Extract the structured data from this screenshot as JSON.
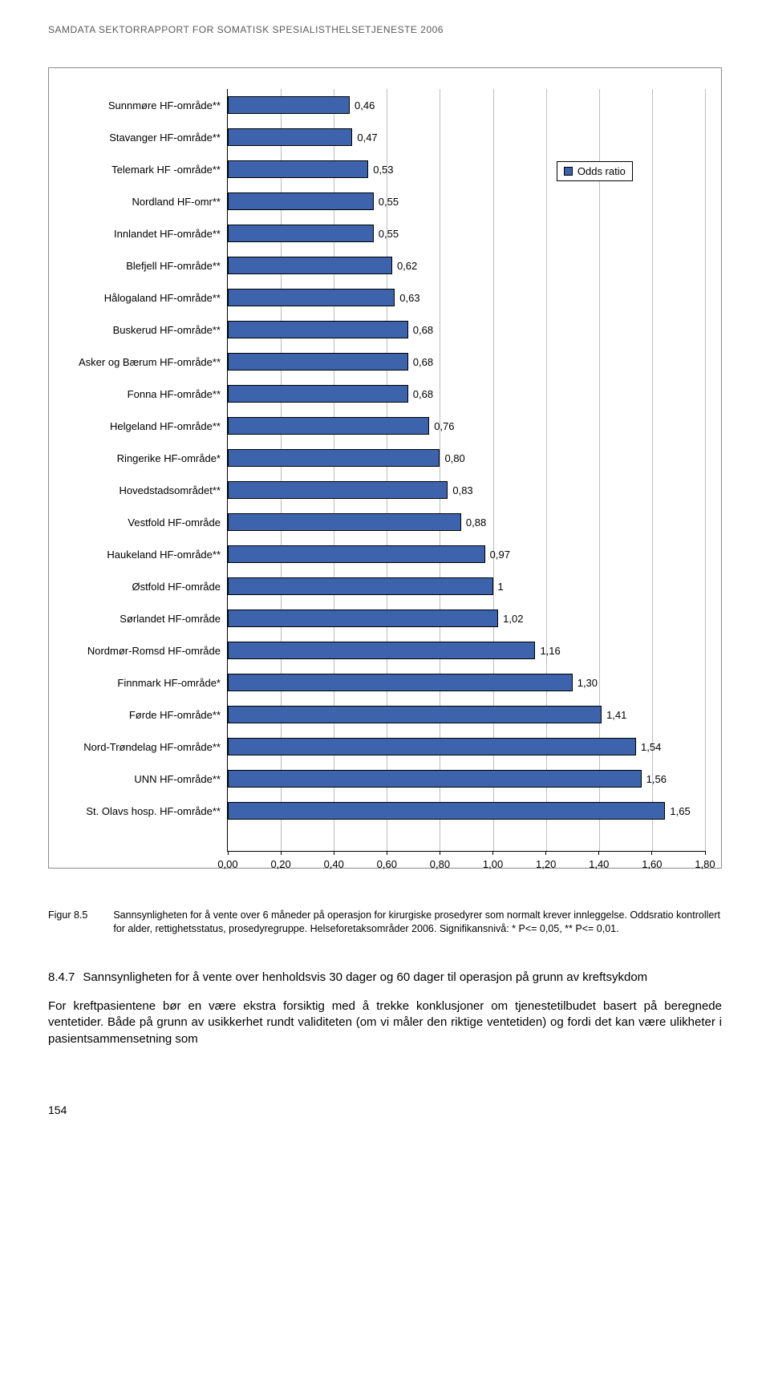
{
  "header": "SAMDATA SEKTORRAPPORT FOR SOMATISK SPESIALISTHELSETJENESTE 2006",
  "chart": {
    "type": "bar",
    "bar_color": "#3c63ac",
    "bar_border": "#000000",
    "grid_color": "#bdbdbd",
    "background_color": "#ffffff",
    "xlim_max": 1.8,
    "x_ticks": [
      "0,00",
      "0,20",
      "0,40",
      "0,60",
      "0,80",
      "1,00",
      "1,20",
      "1,40",
      "1,60",
      "1,80"
    ],
    "x_tick_values": [
      0.0,
      0.2,
      0.4,
      0.6,
      0.8,
      1.0,
      1.2,
      1.4,
      1.6,
      1.8
    ],
    "legend": {
      "swatch_color": "#3c63ac",
      "label": "Odds ratio",
      "left_rel": 1.24,
      "top_row": 2
    },
    "category_fontsize": 13,
    "value_fontsize": 13,
    "tick_fontsize": 13,
    "bars": [
      {
        "label": "Sunnmøre HF-område**",
        "value": 0.46,
        "value_label": "0,46"
      },
      {
        "label": "Stavanger HF-område**",
        "value": 0.47,
        "value_label": "0,47"
      },
      {
        "label": "Telemark HF -område**",
        "value": 0.53,
        "value_label": "0,53"
      },
      {
        "label": "Nordland HF-omr**",
        "value": 0.55,
        "value_label": "0,55"
      },
      {
        "label": "Innlandet HF-område**",
        "value": 0.55,
        "value_label": "0,55"
      },
      {
        "label": "Blefjell HF-område**",
        "value": 0.62,
        "value_label": "0,62"
      },
      {
        "label": "Hålogaland HF-område**",
        "value": 0.63,
        "value_label": "0,63"
      },
      {
        "label": "Buskerud HF-område**",
        "value": 0.68,
        "value_label": "0,68"
      },
      {
        "label": "Asker og Bærum HF-område**",
        "value": 0.68,
        "value_label": "0,68"
      },
      {
        "label": "Fonna HF-område**",
        "value": 0.68,
        "value_label": "0,68"
      },
      {
        "label": "Helgeland HF-område**",
        "value": 0.76,
        "value_label": "0,76"
      },
      {
        "label": "Ringerike HF-område*",
        "value": 0.8,
        "value_label": "0,80"
      },
      {
        "label": "Hovedstadsområdet**",
        "value": 0.83,
        "value_label": "0,83"
      },
      {
        "label": "Vestfold HF-område",
        "value": 0.88,
        "value_label": "0,88"
      },
      {
        "label": "Haukeland HF-område**",
        "value": 0.97,
        "value_label": "0,97"
      },
      {
        "label": "Østfold HF-område",
        "value": 1.0,
        "value_label": "1"
      },
      {
        "label": "Sørlandet HF-område",
        "value": 1.02,
        "value_label": "1,02"
      },
      {
        "label": "Nordmør-Romsd HF-område",
        "value": 1.16,
        "value_label": "1,16"
      },
      {
        "label": "Finnmark HF-område*",
        "value": 1.3,
        "value_label": "1,30"
      },
      {
        "label": "Førde HF-område**",
        "value": 1.41,
        "value_label": "1,41"
      },
      {
        "label": "Nord-Trøndelag HF-område**",
        "value": 1.54,
        "value_label": "1,54"
      },
      {
        "label": "UNN HF-område**",
        "value": 1.56,
        "value_label": "1,56"
      },
      {
        "label": "St. Olavs hosp. HF-område**",
        "value": 1.65,
        "value_label": "1,65"
      }
    ]
  },
  "caption": {
    "label": "Figur 8.5",
    "text": "Sannsynligheten for å vente over 6 måneder på operasjon for kirurgiske prosedyrer som normalt krever innleggelse. Oddsratio kontrollert for alder, rettighetsstatus, prosedyregruppe. Helseforetaksområder 2006. Signifikansnivå: * P<= 0,05, ** P<= 0,01."
  },
  "section": {
    "number": "8.4.7",
    "title": "Sannsynligheten for å vente over henholdsvis 30 dager og 60 dager til operasjon på grunn av kreftsykdom"
  },
  "body": "For kreftpasientene bør en være ekstra forsiktig med å trekke konklusjoner om tjeneste­tilbudet basert på beregnede ventetider. Både på grunn av usikkerhet rundt validiteten (om vi måler den riktige ventetiden) og fordi det kan være ulikheter i pasientsammensetning som",
  "page_number": "154"
}
